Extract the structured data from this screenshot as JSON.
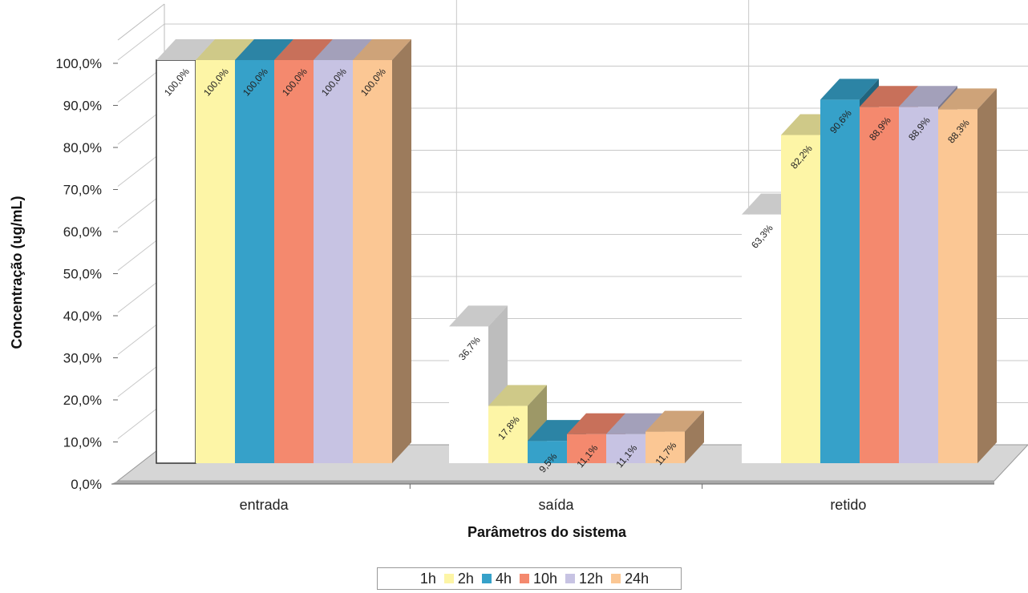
{
  "chart_data": {
    "type": "bar",
    "title": "",
    "xlabel": "Parâmetros do sistema",
    "ylabel": "Concentração (ug/mL)",
    "ylim": [
      0,
      100
    ],
    "yticks": [
      "0,0%",
      "10,0%",
      "20,0%",
      "30,0%",
      "40,0%",
      "50,0%",
      "60,0%",
      "70,0%",
      "80,0%",
      "90,0%",
      "100,0%"
    ],
    "categories": [
      "entrada",
      "saída",
      "retido"
    ],
    "series": [
      {
        "name": "1h",
        "color": "#ffffff",
        "values": [
          100.0,
          36.7,
          63.3
        ],
        "labels": [
          "100,0%",
          "36,7%",
          "63,3%"
        ]
      },
      {
        "name": "2h",
        "color": "#fdf5a6",
        "values": [
          100.0,
          17.8,
          82.2
        ],
        "labels": [
          "100,0%",
          "17,8%",
          "82,2%"
        ]
      },
      {
        "name": "4h",
        "color": "#36a1c9",
        "values": [
          100.0,
          9.5,
          90.6
        ],
        "labels": [
          "100,0%",
          "9,5%",
          "90,6%"
        ]
      },
      {
        "name": "10h",
        "color": "#f4896e",
        "values": [
          100.0,
          11.1,
          88.9
        ],
        "labels": [
          "100,0%",
          "11,1%",
          "88,9%"
        ]
      },
      {
        "name": "12h",
        "color": "#c7c3e3",
        "values": [
          100.0,
          11.1,
          88.9
        ],
        "labels": [
          "100,0%",
          "11,1%",
          "88,9%"
        ]
      },
      {
        "name": "24h",
        "color": "#fbc794",
        "values": [
          100.0,
          11.7,
          88.3
        ],
        "labels": [
          "100,0%",
          "11,7%",
          "88,3%"
        ]
      }
    ],
    "legend_position": "bottom",
    "grid": true,
    "style": "3d"
  }
}
